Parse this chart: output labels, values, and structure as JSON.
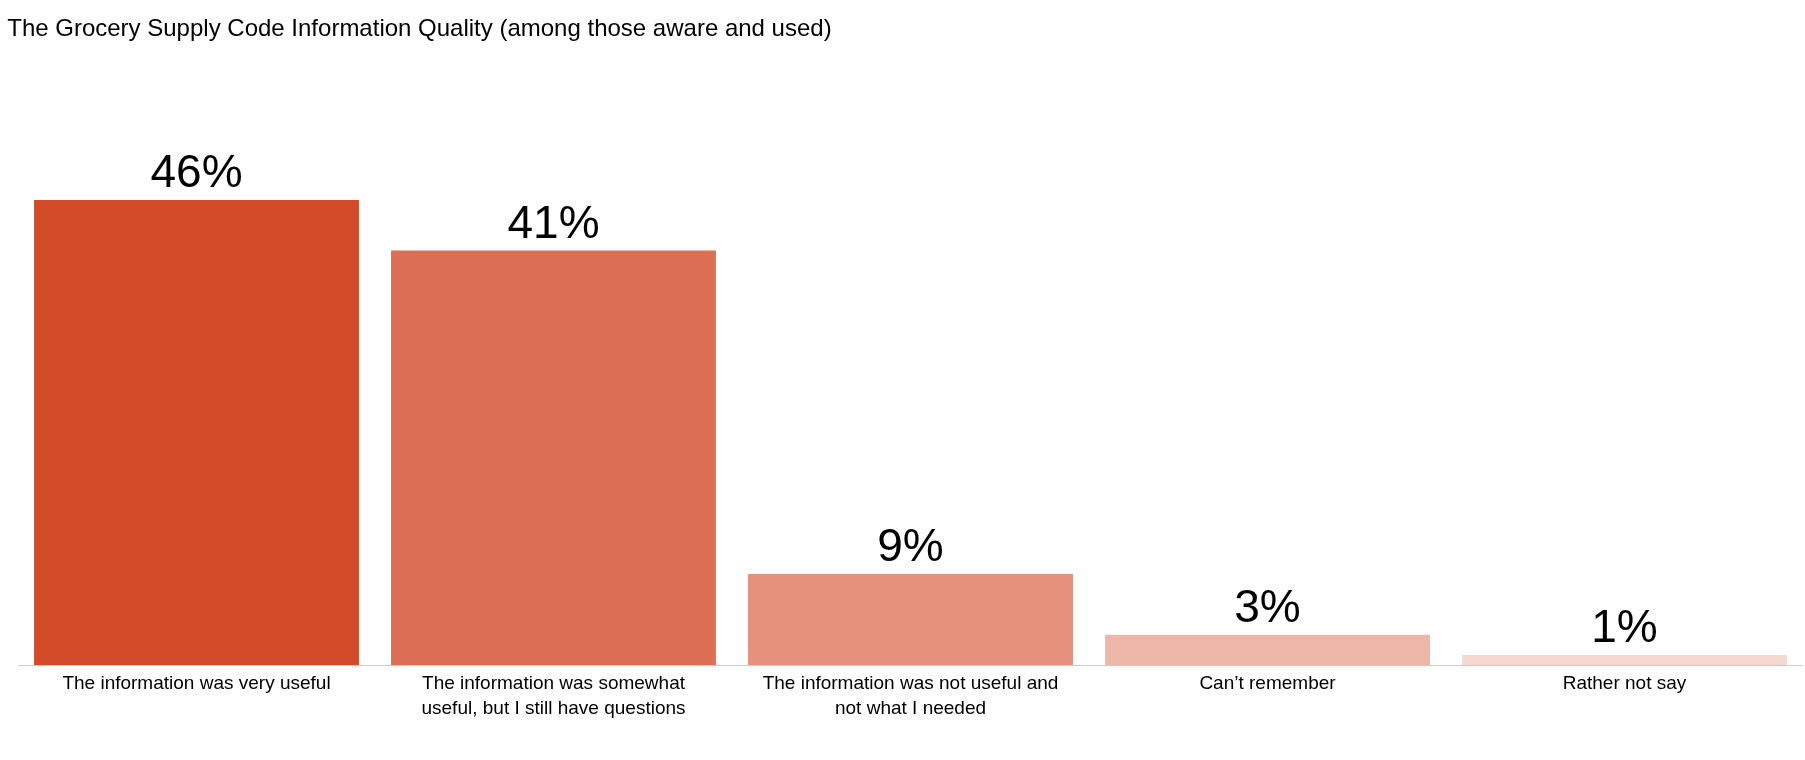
{
  "chart_data": {
    "type": "bar",
    "title": "The Grocery Supply Code Information Quality (among those aware and used)",
    "categories": [
      "The information was very useful",
      "The information was somewhat useful, but I still have questions",
      "The information was not useful and not what I needed",
      "Can’t remember",
      "Rather not say"
    ],
    "values": [
      46,
      41,
      9,
      3,
      1
    ],
    "colors": [
      "#d14b29",
      "#dd6f55",
      "#e5917b",
      "#eeb8a8",
      "#f5d9d1"
    ],
    "value_labels": [
      "46%",
      "41%",
      "9%",
      "3%",
      "1%"
    ],
    "legend": false
  }
}
